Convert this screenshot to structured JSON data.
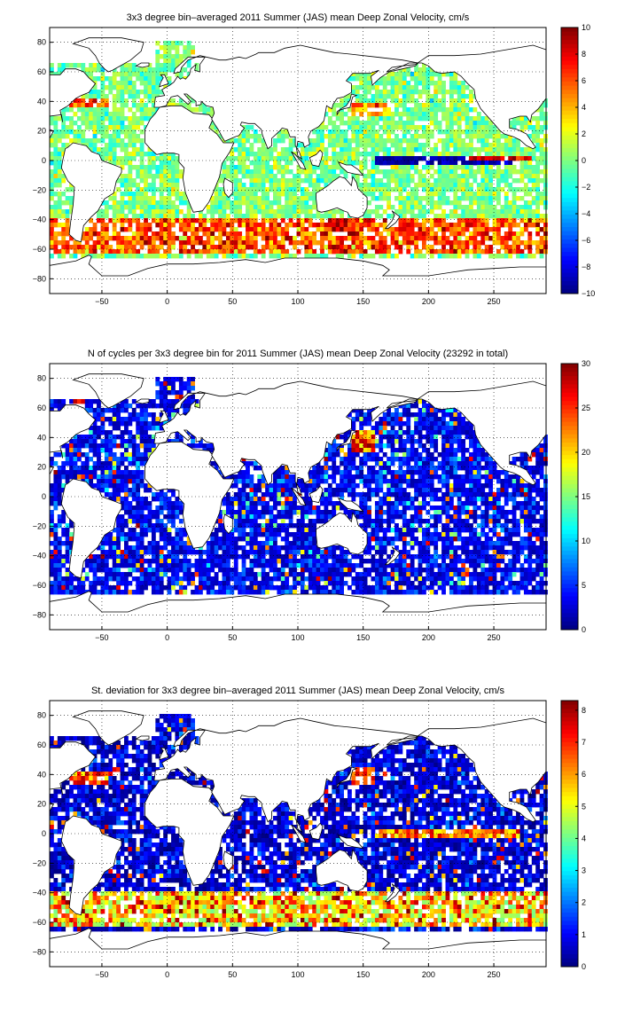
{
  "panels": [
    {
      "title": "3x3 degree bin–averaged 2011 Summer (JAS) mean Deep Zonal Velocity, cm/s",
      "field": "zonal_velocity",
      "colorbar": {
        "min": -10,
        "max": 10,
        "ticks": [
          "10",
          "8",
          "6",
          "4",
          "2",
          "0",
          "−2",
          "−4",
          "−6",
          "−8",
          "−10"
        ],
        "tick_values": [
          10,
          8,
          6,
          4,
          2,
          0,
          -2,
          -4,
          -6,
          -8,
          -10
        ]
      }
    },
    {
      "title": "N of cycles per 3x3 degree bin for 2011 Summer (JAS) mean Deep Zonal Velocity (23292 in total)",
      "field": "cycle_count",
      "colorbar": {
        "min": 0,
        "max": 30,
        "ticks": [
          "30",
          "25",
          "20",
          "15",
          "10",
          "5",
          "0"
        ],
        "tick_values": [
          30,
          25,
          20,
          15,
          10,
          5,
          0
        ]
      }
    },
    {
      "title": "St. deviation for 3x3 degree bin–averaged 2011 Summer (JAS) mean Deep Zonal Velocity, cm/s",
      "field": "std_dev",
      "colorbar": {
        "min": 0,
        "max": 8.3,
        "ticks": [
          "8",
          "7",
          "6",
          "5",
          "4",
          "3",
          "2",
          "1",
          "0"
        ],
        "tick_values": [
          8,
          7,
          6,
          5,
          4,
          3,
          2,
          1,
          0
        ]
      }
    }
  ],
  "x_ticks": [
    "−50",
    "0",
    "50",
    "100",
    "150",
    "200",
    "250"
  ],
  "y_ticks": [
    "80",
    "60",
    "40",
    "20",
    "0",
    "−20",
    "−40",
    "−60",
    "−80"
  ],
  "chart_data": [
    {
      "type": "heatmap",
      "title": "3x3 degree bin–averaged 2011 Summer (JAS) mean Deep Zonal Velocity, cm/s",
      "xlim": [
        -90,
        290
      ],
      "ylim": [
        -90,
        90
      ],
      "x_ticks": [
        -50,
        0,
        50,
        100,
        150,
        200,
        250
      ],
      "y_ticks": [
        80,
        60,
        40,
        20,
        0,
        -20,
        -40,
        -60,
        -80
      ],
      "bin_size_deg": 3,
      "colormap": "jet",
      "color_range": [
        -10,
        10
      ],
      "units": "cm/s",
      "grid": true,
      "features": "strong eastward (positive) flow along Antarctic Circumpolar Current band near 45–60S; westward (negative) band along the equatorial Pacific; mostly near-zero values elsewhere"
    },
    {
      "type": "heatmap",
      "title": "N of cycles per 3x3 degree bin for 2011 Summer (JAS) mean Deep Zonal Velocity (23292 in total)",
      "xlim": [
        -90,
        290
      ],
      "ylim": [
        -90,
        90
      ],
      "x_ticks": [
        -50,
        0,
        50,
        100,
        150,
        200,
        250
      ],
      "y_ticks": [
        80,
        60,
        40,
        20,
        0,
        -20,
        -40,
        -60,
        -80
      ],
      "bin_size_deg": 3,
      "colormap": "jet",
      "color_range": [
        0,
        30
      ],
      "total_cycles": 23292,
      "grid": true,
      "features": "mostly low counts (0–10) with higher counts (20–30) in the Kuroshio region and scattered bins"
    },
    {
      "type": "heatmap",
      "title": "St. deviation for 3x3 degree bin–averaged 2011 Summer (JAS) mean Deep Zonal Velocity, cm/s",
      "xlim": [
        -90,
        290
      ],
      "ylim": [
        -90,
        90
      ],
      "x_ticks": [
        -50,
        0,
        50,
        100,
        150,
        200,
        250
      ],
      "y_ticks": [
        80,
        60,
        40,
        20,
        0,
        -20,
        -40,
        -60,
        -80
      ],
      "bin_size_deg": 3,
      "colormap": "jet",
      "color_range": [
        0,
        8.3
      ],
      "units": "cm/s",
      "grid": true,
      "features": "high standard deviation along the Southern Ocean band, Gulf Stream, Kuroshio and equatorial Pacific; low elsewhere"
    }
  ]
}
